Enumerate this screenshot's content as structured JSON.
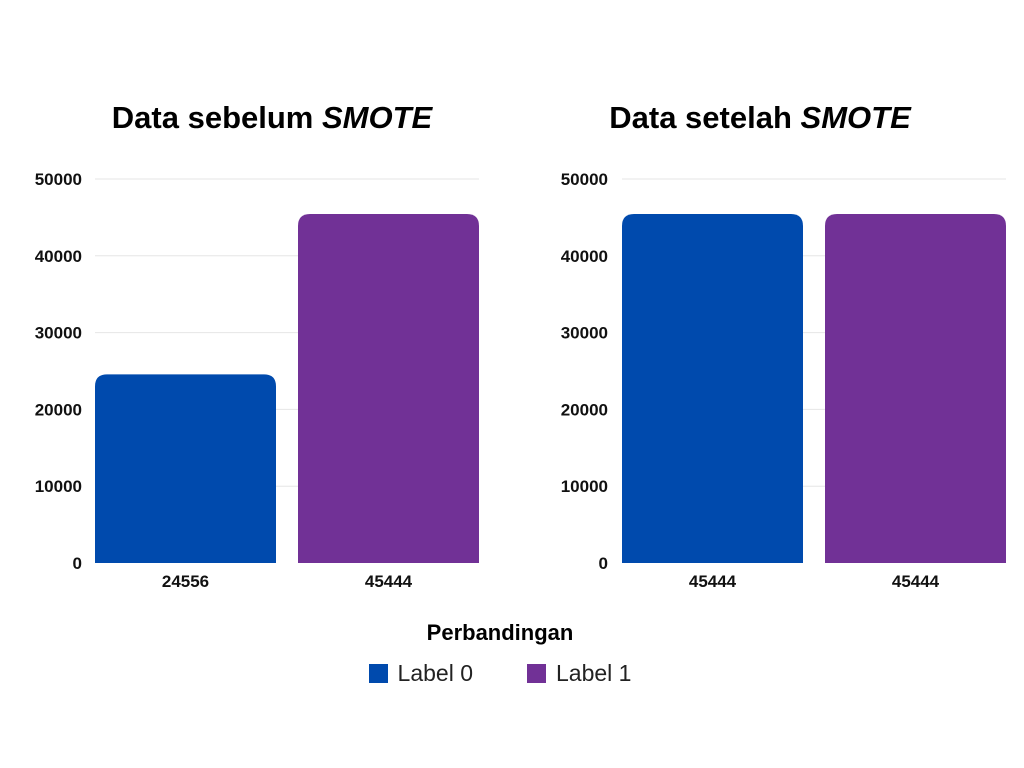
{
  "chart_data": [
    {
      "type": "bar",
      "title": "Data sebelum",
      "title_emphasis": "SMOTE",
      "categories": [
        "24556",
        "45444"
      ],
      "values": [
        24556,
        45444
      ],
      "colors": [
        "#004aad",
        "#713196"
      ],
      "ylim": [
        0,
        50000
      ],
      "yticks": [
        0,
        10000,
        20000,
        30000,
        40000,
        50000
      ],
      "grid": true
    },
    {
      "type": "bar",
      "title": "Data setelah",
      "title_emphasis": "SMOTE",
      "categories": [
        "45444",
        "45444"
      ],
      "values": [
        45444,
        45444
      ],
      "colors": [
        "#004aad",
        "#713196"
      ],
      "ylim": [
        0,
        50000
      ],
      "yticks": [
        0,
        10000,
        20000,
        30000,
        40000,
        50000
      ],
      "grid": true
    }
  ],
  "legend": {
    "title": "Perbandingan",
    "placement": "bottom-center",
    "items": [
      {
        "label": "Label 0",
        "color": "#004aad"
      },
      {
        "label": "Label 1",
        "color": "#713196"
      }
    ]
  }
}
